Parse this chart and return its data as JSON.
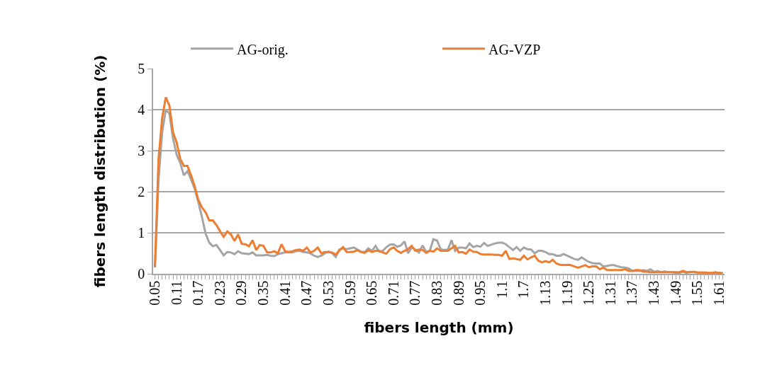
{
  "chart_data": {
    "type": "line",
    "xlabel": "fibers length (mm)",
    "ylabel": "fibers length distribution (%)",
    "categories": [
      "0.05",
      null,
      null,
      null,
      null,
      null,
      "0.11",
      null,
      null,
      null,
      null,
      null,
      "0.17",
      null,
      null,
      null,
      null,
      null,
      "0.23",
      null,
      null,
      null,
      null,
      null,
      "0.29",
      null,
      null,
      null,
      null,
      null,
      "0.35",
      null,
      null,
      null,
      null,
      null,
      "0.41",
      null,
      null,
      null,
      null,
      null,
      "0.47",
      null,
      null,
      null,
      null,
      null,
      "0.53",
      null,
      null,
      null,
      null,
      null,
      "0.59",
      null,
      null,
      null,
      null,
      null,
      "0.65",
      null,
      null,
      null,
      null,
      null,
      "0.71",
      null,
      null,
      null,
      null,
      null,
      "0.77",
      null,
      null,
      null,
      null,
      null,
      "0.83",
      null,
      null,
      null,
      null,
      null,
      "0.89",
      null,
      null,
      null,
      null,
      null,
      "0.95",
      null,
      null,
      null,
      null,
      null,
      "1.1",
      null,
      null,
      null,
      null,
      null,
      "1.7",
      null,
      null,
      null,
      null,
      null,
      "1.13",
      null,
      null,
      null,
      null,
      null,
      "1.19",
      null,
      null,
      null,
      null,
      null,
      "1.25",
      null,
      null,
      null,
      null,
      null,
      "1.31",
      null,
      null,
      null,
      null,
      null,
      "1.37",
      null,
      null,
      null,
      null,
      null,
      "1.43",
      null,
      null,
      null,
      null,
      null,
      "1.49",
      null,
      null,
      null,
      null,
      null,
      "1.55",
      null,
      null,
      null,
      null,
      null,
      "1.61",
      null
    ],
    "series": [
      {
        "name": "AG-orig.",
        "color": "#a5a5a5",
        "values": [
          0.16,
          2.3,
          3.45,
          4.0,
          3.9,
          3.3,
          2.9,
          2.7,
          2.4,
          2.5,
          2.3,
          2.07,
          1.75,
          1.38,
          0.98,
          0.76,
          0.67,
          0.7,
          0.58,
          0.45,
          0.53,
          0.52,
          0.48,
          0.55,
          0.5,
          0.49,
          0.48,
          0.52,
          0.45,
          0.45,
          0.45,
          0.46,
          0.44,
          0.43,
          0.48,
          0.5,
          0.52,
          0.52,
          0.52,
          0.55,
          0.56,
          0.53,
          0.52,
          0.5,
          0.44,
          0.41,
          0.44,
          0.5,
          0.54,
          0.5,
          0.41,
          0.59,
          0.62,
          0.6,
          0.62,
          0.64,
          0.59,
          0.54,
          0.53,
          0.62,
          0.56,
          0.68,
          0.54,
          0.56,
          0.65,
          0.71,
          0.72,
          0.66,
          0.69,
          0.79,
          0.5,
          0.64,
          0.59,
          0.52,
          0.69,
          0.53,
          0.56,
          0.84,
          0.81,
          0.6,
          0.58,
          0.59,
          0.82,
          0.56,
          0.64,
          0.64,
          0.62,
          0.74,
          0.65,
          0.68,
          0.66,
          0.75,
          0.68,
          0.71,
          0.74,
          0.76,
          0.76,
          0.72,
          0.65,
          0.58,
          0.65,
          0.56,
          0.64,
          0.6,
          0.59,
          0.5,
          0.56,
          0.56,
          0.53,
          0.48,
          0.48,
          0.44,
          0.44,
          0.48,
          0.44,
          0.4,
          0.36,
          0.34,
          0.4,
          0.34,
          0.29,
          0.26,
          0.25,
          0.25,
          0.18,
          0.19,
          0.21,
          0.21,
          0.18,
          0.16,
          0.15,
          0.13,
          0.07,
          0.07,
          0.07,
          0.09,
          0.07,
          0.11,
          0.05,
          0.07,
          0.04,
          0.06,
          0.04,
          0.04,
          0.02,
          0.02,
          0.05,
          0.02,
          0.05,
          0.04,
          0.03,
          0.03,
          0.03,
          0.02,
          0.02,
          0.03,
          0.02,
          0.02
        ]
      },
      {
        "name": "AG-VZP",
        "color": "#ed7d31",
        "values": [
          0.16,
          2.8,
          3.8,
          4.3,
          4.1,
          3.45,
          3.2,
          2.8,
          2.63,
          2.63,
          2.4,
          2.13,
          1.8,
          1.62,
          1.5,
          1.3,
          1.3,
          1.19,
          1.04,
          0.9,
          1.03,
          0.96,
          0.8,
          0.96,
          0.73,
          0.72,
          0.67,
          0.82,
          0.58,
          0.7,
          0.68,
          0.52,
          0.52,
          0.55,
          0.5,
          0.72,
          0.55,
          0.53,
          0.55,
          0.58,
          0.59,
          0.56,
          0.64,
          0.52,
          0.56,
          0.64,
          0.5,
          0.53,
          0.53,
          0.52,
          0.47,
          0.57,
          0.65,
          0.53,
          0.53,
          0.54,
          0.57,
          0.53,
          0.51,
          0.57,
          0.53,
          0.56,
          0.56,
          0.52,
          0.49,
          0.6,
          0.64,
          0.56,
          0.51,
          0.56,
          0.6,
          0.68,
          0.56,
          0.59,
          0.58,
          0.51,
          0.56,
          0.54,
          0.62,
          0.56,
          0.56,
          0.56,
          0.62,
          0.68,
          0.52,
          0.53,
          0.49,
          0.59,
          0.54,
          0.53,
          0.48,
          0.47,
          0.47,
          0.47,
          0.46,
          0.46,
          0.44,
          0.56,
          0.36,
          0.38,
          0.36,
          0.34,
          0.44,
          0.35,
          0.4,
          0.44,
          0.32,
          0.28,
          0.31,
          0.28,
          0.34,
          0.25,
          0.22,
          0.21,
          0.22,
          0.21,
          0.18,
          0.15,
          0.18,
          0.21,
          0.16,
          0.18,
          0.18,
          0.11,
          0.15,
          0.09,
          0.09,
          0.09,
          0.09,
          0.09,
          0.11,
          0.07,
          0.07,
          0.09,
          0.09,
          0.05,
          0.05,
          0.04,
          0.04,
          0.04,
          0.04,
          0.04,
          0.04,
          0.04,
          0.04,
          0.04,
          0.07,
          0.04,
          0.04,
          0.05,
          0.03,
          0.03,
          0.03,
          0.02,
          0.02,
          0.04,
          0.02,
          0.01
        ]
      }
    ],
    "ylim": [
      0,
      5
    ],
    "yticks": [
      0,
      1,
      2,
      3,
      4,
      5
    ],
    "grid": "y",
    "legend": "top",
    "marker": "none",
    "line_style": "solid"
  }
}
